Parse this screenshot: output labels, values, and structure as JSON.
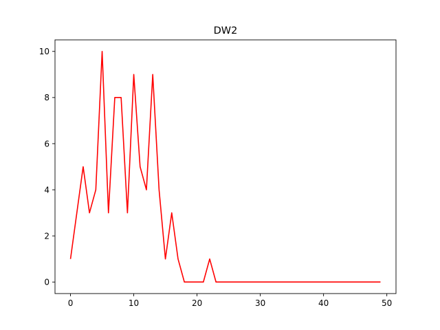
{
  "chart_data": {
    "type": "line",
    "title": "DW2",
    "xlabel": "",
    "ylabel": "",
    "xlim": [
      -2.45,
      51.45
    ],
    "ylim": [
      -0.5,
      10.5
    ],
    "xticks": [
      0,
      10,
      20,
      30,
      40,
      50
    ],
    "yticks": [
      0,
      2,
      4,
      6,
      8,
      10
    ],
    "grid": false,
    "series": [
      {
        "color": "#ff0000",
        "x": [
          0,
          1,
          2,
          3,
          4,
          5,
          6,
          7,
          8,
          9,
          10,
          11,
          12,
          13,
          14,
          15,
          16,
          17,
          18,
          19,
          20,
          21,
          22,
          23,
          24,
          25,
          26,
          27,
          28,
          29,
          30,
          31,
          32,
          33,
          34,
          35,
          36,
          37,
          38,
          39,
          40,
          41,
          42,
          43,
          44,
          45,
          46,
          47,
          48,
          49
        ],
        "values": [
          1,
          3,
          5,
          3,
          4,
          10,
          3,
          8,
          8,
          3,
          9,
          5,
          4,
          9,
          4,
          1,
          3,
          1,
          0,
          0,
          0,
          0,
          1,
          0,
          0,
          0,
          0,
          0,
          0,
          0,
          0,
          0,
          0,
          0,
          0,
          0,
          0,
          0,
          0,
          0,
          0,
          0,
          0,
          0,
          0,
          0,
          0,
          0,
          0,
          0
        ]
      }
    ]
  }
}
